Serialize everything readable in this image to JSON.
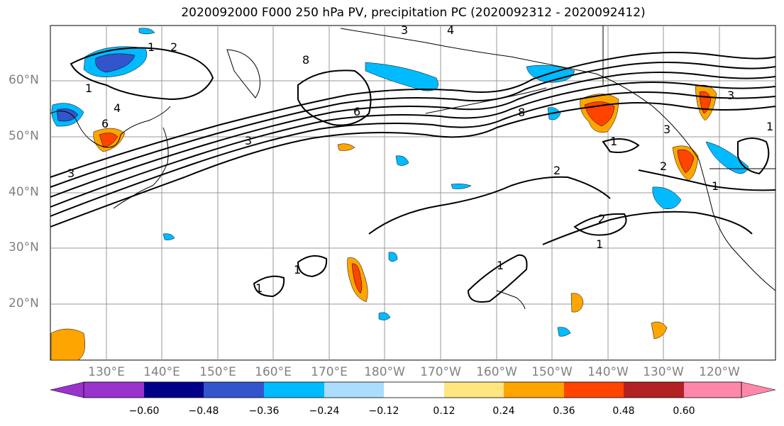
{
  "title": "2020092000 F000 250 hPa PV, precipitation PC (2020092312 - 2020092412)",
  "map": {
    "lat_labels": [
      "60°N",
      "50°N",
      "40°N",
      "30°N",
      "20°N"
    ],
    "lon_labels": [
      "130°E",
      "140°E",
      "150°E",
      "160°E",
      "170°E",
      "180°W",
      "170°W",
      "160°W",
      "150°W",
      "140°W",
      "130°W",
      "120°W"
    ],
    "contour_labels": [
      "1",
      "2",
      "3",
      "4",
      "6",
      "8"
    ],
    "grid": true
  },
  "colorbar": {
    "ticks": [
      "−0.60",
      "−0.48",
      "−0.36",
      "−0.24",
      "−0.12",
      "0.12",
      "0.24",
      "0.36",
      "0.48",
      "0.60"
    ],
    "colors": [
      "#9933cc",
      "#000088",
      "#3355cc",
      "#00bbff",
      "#aaddff",
      "#ffffff",
      "#ffe680",
      "#ffa500",
      "#ff4400",
      "#b22222",
      "#ff88aa"
    ]
  }
}
